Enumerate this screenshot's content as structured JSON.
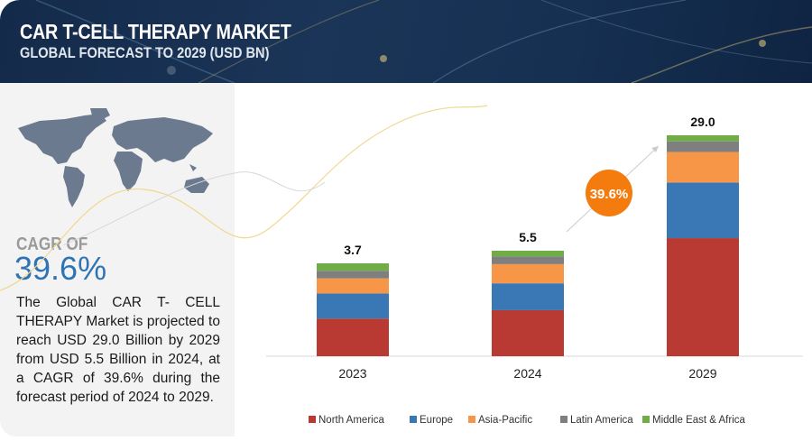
{
  "header": {
    "title": "CAR T-CELL THERAPY MARKET",
    "subtitle": "GLOBAL FORECAST TO 2029 (USD BN)"
  },
  "left_panel": {
    "map_icon": "world-map-icon",
    "cagr_label": "CAGR OF",
    "cagr_value": "39.6%",
    "description": "The Global CAR T- CELL THERAPY Market is projected to reach USD 29.0 Billion by 2029 from USD 5.5 Billion in 2024, at a CAGR of 39.6% during the forecast period of 2024 to 2029."
  },
  "colors": {
    "header_bg": "#1b3558",
    "accent_blue": "#2e74b5",
    "cagr_bubble": "#f47c0f"
  },
  "chart_data": {
    "type": "bar",
    "stacked": true,
    "title": "CAR T-CELL THERAPY MARKET",
    "subtitle": "GLOBAL FORECAST TO 2029 (USD BN)",
    "xlabel": "",
    "ylabel": "",
    "categories": [
      "2023",
      "2024",
      "2029"
    ],
    "totals": [
      3.7,
      5.5,
      29.0
    ],
    "total_labels": [
      "3.7",
      "5.5",
      "29.0"
    ],
    "series": [
      {
        "name": "North America",
        "color": "#b83a32",
        "values": [
          1.5,
          2.4,
          15.5
        ]
      },
      {
        "name": "Europe",
        "color": "#3a78b5",
        "values": [
          1.0,
          1.4,
          7.3
        ]
      },
      {
        "name": "Asia-Pacific",
        "color": "#f79646",
        "values": [
          0.6,
          1.0,
          4.0
        ]
      },
      {
        "name": "Latin America",
        "color": "#7f7f7f",
        "values": [
          0.3,
          0.4,
          1.4
        ]
      },
      {
        "name": "Middle East & Africa",
        "color": "#70ad47",
        "values": [
          0.3,
          0.3,
          0.8
        ]
      }
    ],
    "annotation": {
      "text": "39.6%",
      "from": "2024",
      "to": "2029",
      "label": "CAGR"
    },
    "grid": false,
    "legend": "bottom"
  }
}
